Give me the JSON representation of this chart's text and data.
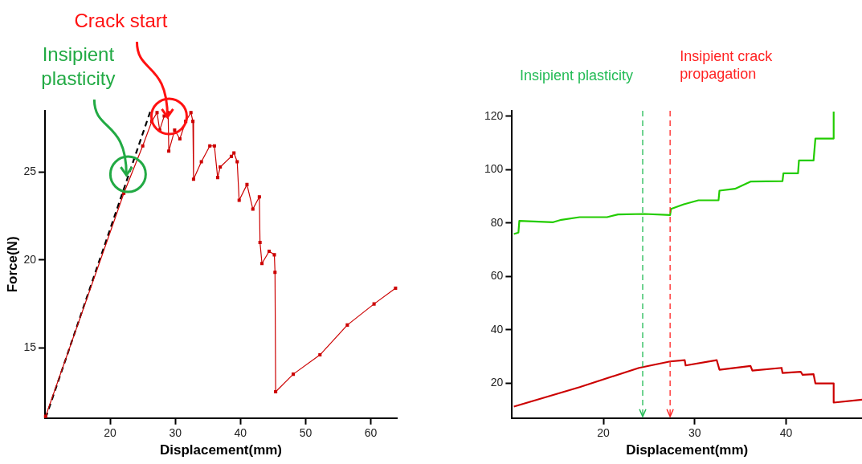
{
  "chart_data": [
    {
      "type": "line",
      "xlabel": "Displacement(mm)",
      "ylabel": "Force(N)",
      "xlim": [
        10,
        64
      ],
      "ylim": [
        11,
        28.5
      ],
      "xticks": [
        20,
        30,
        40,
        50,
        60
      ],
      "yticks": [
        15,
        20,
        25
      ],
      "grid": false,
      "legend": false,
      "annotations": [
        {
          "text": "Insipient plasticity",
          "x": 22.5,
          "y": 24.7
        },
        {
          "text": "Crack start",
          "x": 28.8,
          "y": 28.0
        }
      ],
      "series": [
        {
          "color": "#cc0000",
          "marker": "square",
          "line_style": "solid",
          "x": [
            10.1,
            22.1,
            25,
            26.4,
            27.2,
            27.6,
            28.3,
            28.9,
            29.0,
            29.9,
            30.7,
            31.6,
            32.4,
            32.7,
            32.8,
            34.0,
            35.3,
            36.0,
            36.5,
            36.9,
            38.6,
            39.0,
            39.5,
            39.8,
            41.0,
            41.9,
            42.9,
            43.0,
            43.3,
            44.4,
            45.2,
            45.3,
            45.4,
            48.1,
            52.2,
            56.4,
            60.5,
            63.8
          ],
          "values": [
            11.1,
            23.8,
            26.5,
            27.9,
            28.4,
            27.4,
            28.2,
            28.4,
            26.2,
            27.4,
            26.9,
            27.9,
            28.4,
            27.9,
            24.6,
            25.6,
            26.5,
            26.5,
            24.7,
            25.3,
            25.9,
            26.1,
            25.6,
            23.4,
            24.3,
            22.9,
            23.6,
            21.0,
            19.8,
            20.5,
            20.3,
            19.3,
            12.5,
            13.5,
            14.6,
            16.3,
            17.5,
            18.4
          ]
        },
        {
          "type": "line",
          "color": "#000000",
          "marker": "none",
          "line_style": "dashed",
          "x": [
            10.1,
            26.2
          ],
          "values": [
            11,
            28.5
          ]
        }
      ]
    },
    {
      "type": "line",
      "xlabel": "Displacement(mm)",
      "xlim": [
        10,
        48.3
      ],
      "ylim": [
        7,
        122
      ],
      "xticks": [
        20,
        30,
        40
      ],
      "yticks": [
        20,
        40,
        60,
        80,
        100,
        120
      ],
      "grid": false,
      "legend": false,
      "ref_lines": [
        {
          "axis": "x",
          "value": 24.3,
          "label": "Insipient plasticity",
          "color": "#22bb55",
          "line_style": "dashed"
        },
        {
          "axis": "x",
          "value": 27.3,
          "label": "Insipient crack propagation",
          "color": "#ff2222",
          "line_style": "dashed"
        }
      ],
      "series": [
        {
          "color": "#22cc00",
          "marker": "none",
          "line_style": "solid",
          "x": [
            10.2,
            10.7,
            10.8,
            14.5,
            15.4,
            17.4,
            20.4,
            21.6,
            24.5,
            27.3,
            27.4,
            28.8,
            30.4,
            32.6,
            32.7,
            34.4,
            36.1,
            39.6,
            39.7,
            41.3,
            41.4,
            43.0,
            43.2,
            45.2,
            45.2
          ],
          "values": [
            75.9,
            76.4,
            80.8,
            80.3,
            81.2,
            82.2,
            82.2,
            83.2,
            83.4,
            83.0,
            85.3,
            87.0,
            88.5,
            88.5,
            92.1,
            92.8,
            95.5,
            95.7,
            98.6,
            98.6,
            103.4,
            103.4,
            111.6,
            111.6,
            121.7
          ]
        },
        {
          "color": "#cc0000",
          "marker": "none",
          "line_style": "solid",
          "x": [
            10.2,
            17.4,
            23.9,
            27.3,
            28.9,
            29.0,
            32.4,
            32.7,
            36.1,
            36.3,
            39.5,
            39.6,
            41.6,
            41.8,
            43.0,
            43.2,
            45.2,
            45.2,
            48.3
          ],
          "values": [
            11.3,
            18.6,
            25.8,
            28.2,
            28.7,
            26.7,
            28.7,
            25.1,
            26.5,
            24.8,
            25.8,
            23.9,
            24.3,
            23.2,
            23.4,
            20.0,
            20.0,
            12.8,
            13.9
          ]
        }
      ]
    }
  ]
}
